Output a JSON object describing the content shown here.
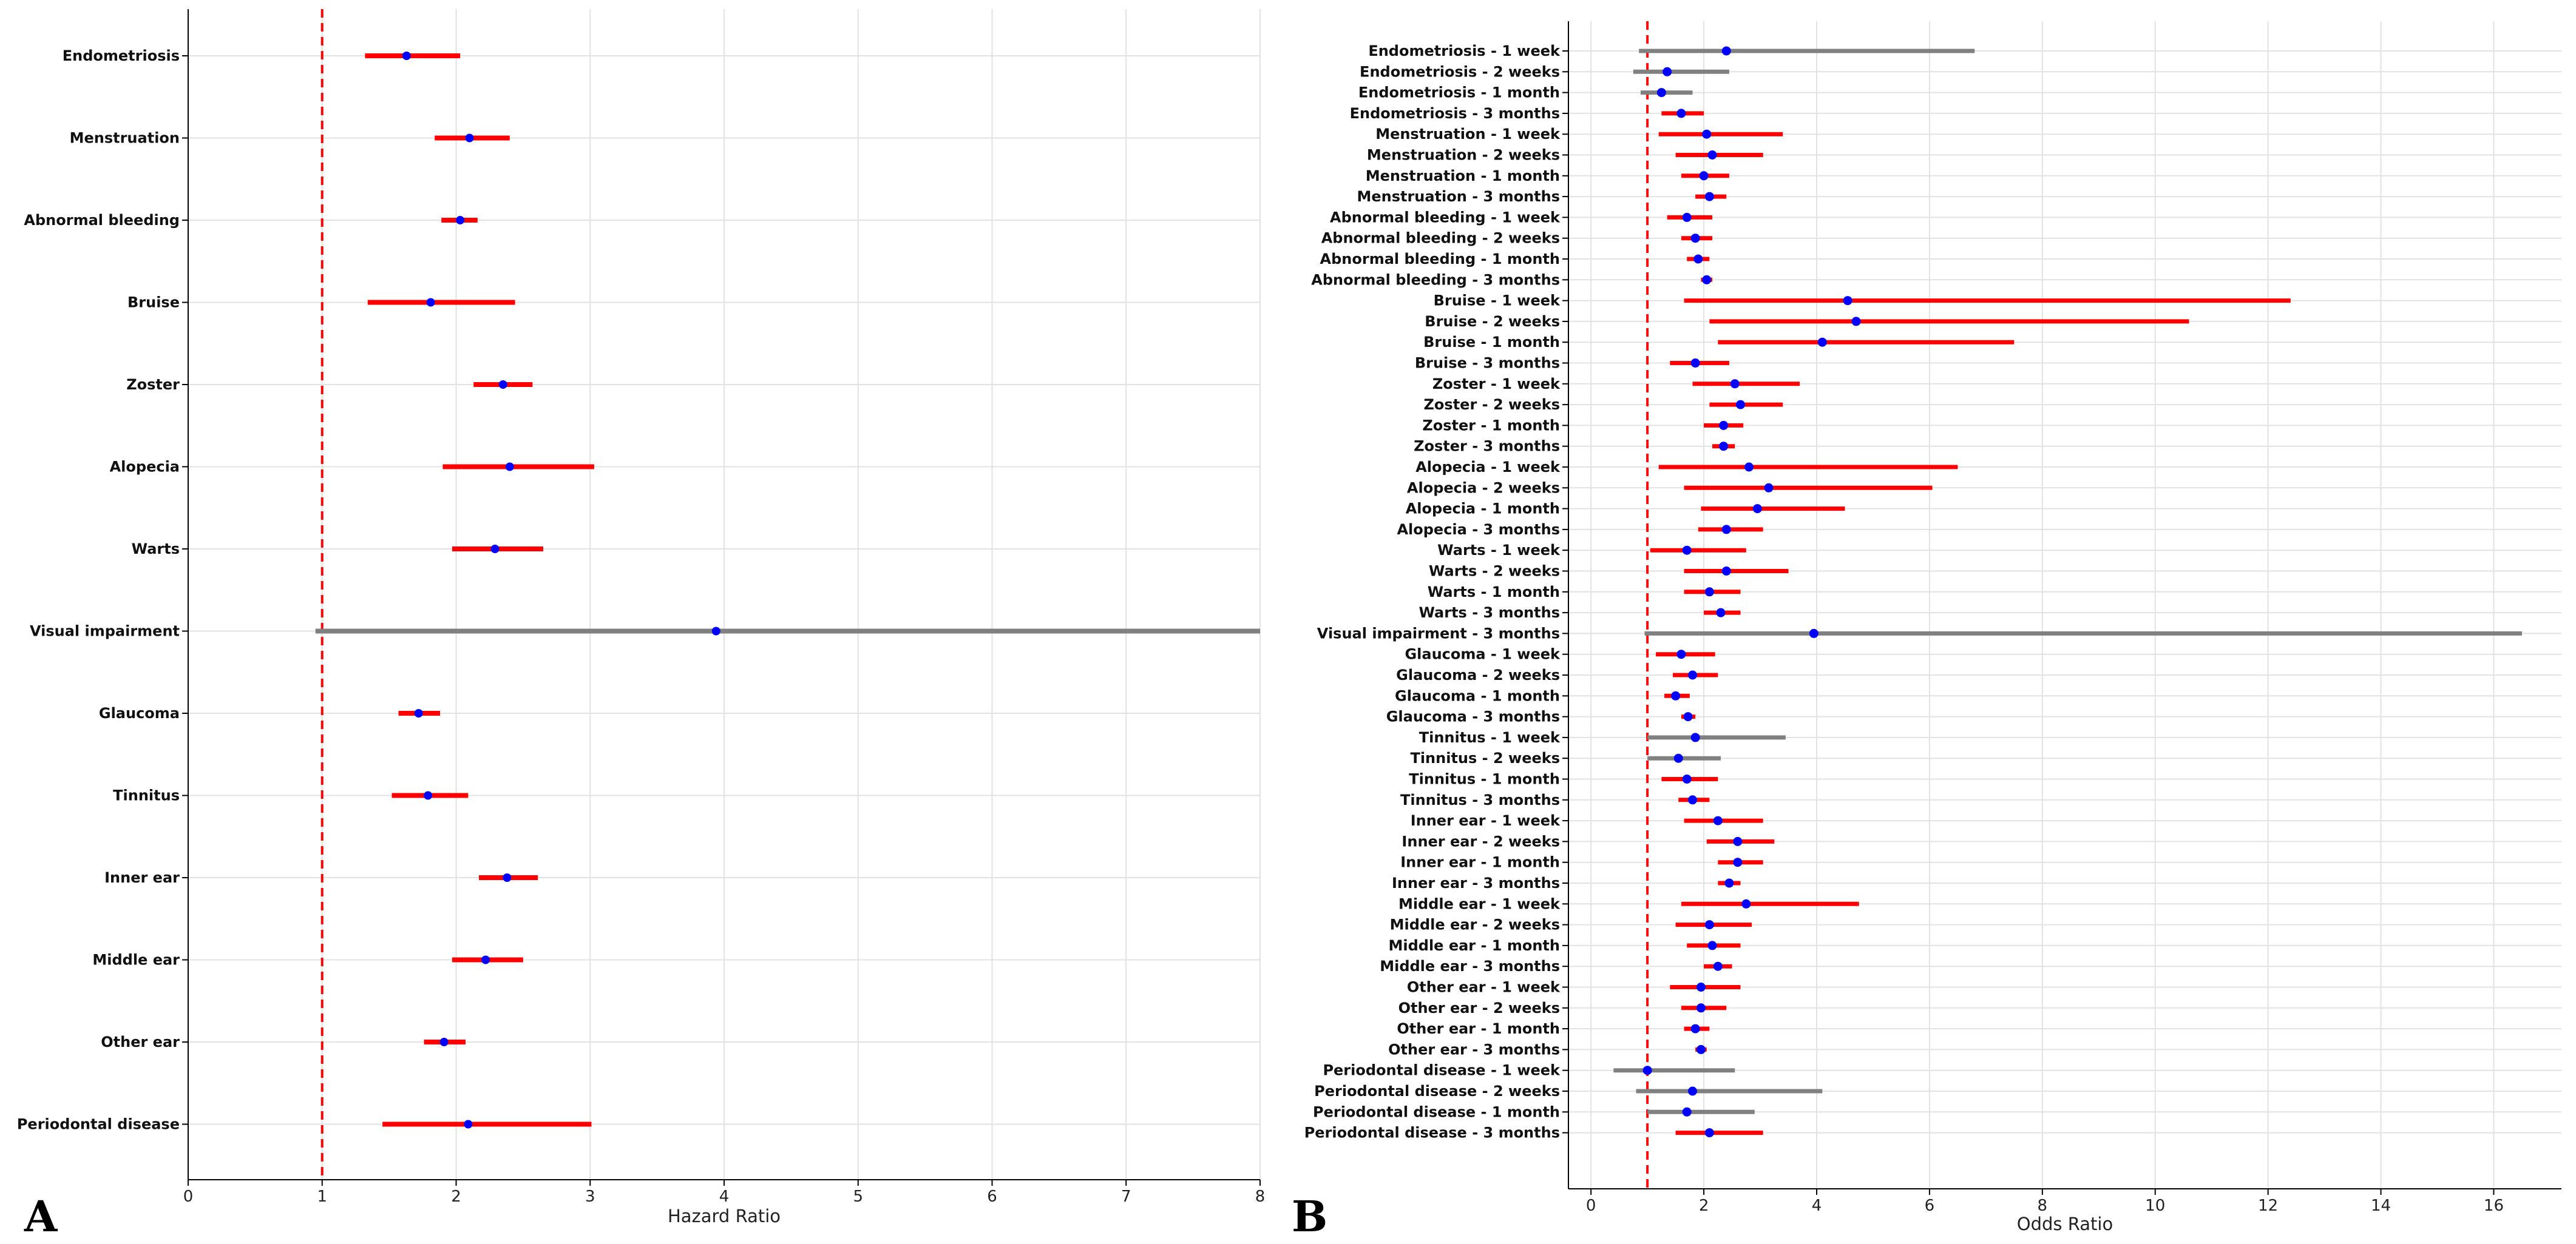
{
  "colors": {
    "significant": "#ff0000",
    "nonsignificant": "#808080",
    "point": "#0000ff",
    "reference": "#ff0000",
    "grid": "#e2e2e2",
    "axis": "#000000"
  },
  "chart_data": [
    {
      "type": "forest",
      "panel_label": "A",
      "title": "",
      "xlabel": "Hazard Ratio",
      "ylabel": "",
      "xlim": [
        0,
        8
      ],
      "xticks": [
        0,
        1,
        2,
        3,
        4,
        5,
        6,
        7,
        8
      ],
      "grid": true,
      "reference_line": 1,
      "rows": [
        {
          "label": "Endometriosis",
          "est": 1.63,
          "lo": 1.32,
          "hi": 2.03,
          "sig": true
        },
        {
          "label": "Menstruation",
          "est": 2.1,
          "lo": 1.84,
          "hi": 2.4,
          "sig": true
        },
        {
          "label": "Abnormal bleeding",
          "est": 2.03,
          "lo": 1.89,
          "hi": 2.16,
          "sig": true
        },
        {
          "label": "Bruise",
          "est": 1.81,
          "lo": 1.34,
          "hi": 2.44,
          "sig": true
        },
        {
          "label": "Zoster",
          "est": 2.35,
          "lo": 2.13,
          "hi": 2.57,
          "sig": true
        },
        {
          "label": "Alopecia",
          "est": 2.4,
          "lo": 1.9,
          "hi": 3.03,
          "sig": true
        },
        {
          "label": "Warts",
          "est": 2.29,
          "lo": 1.97,
          "hi": 2.65,
          "sig": true
        },
        {
          "label": "Visual impairment",
          "est": 3.94,
          "lo": 0.95,
          "hi": 8.0,
          "sig": false
        },
        {
          "label": "Glaucoma",
          "est": 1.72,
          "lo": 1.57,
          "hi": 1.88,
          "sig": true
        },
        {
          "label": "Tinnitus",
          "est": 1.79,
          "lo": 1.52,
          "hi": 2.09,
          "sig": true
        },
        {
          "label": "Inner ear",
          "est": 2.38,
          "lo": 2.17,
          "hi": 2.61,
          "sig": true
        },
        {
          "label": "Middle ear",
          "est": 2.22,
          "lo": 1.97,
          "hi": 2.5,
          "sig": true
        },
        {
          "label": "Other ear",
          "est": 1.91,
          "lo": 1.76,
          "hi": 2.07,
          "sig": true
        },
        {
          "label": "Periodontal disease",
          "est": 2.09,
          "lo": 1.45,
          "hi": 3.01,
          "sig": true
        }
      ]
    },
    {
      "type": "forest",
      "panel_label": "B",
      "title": "",
      "xlabel": "Odds Ratio",
      "ylabel": "",
      "xlim": [
        -0.4,
        17.2
      ],
      "xticks": [
        0,
        2,
        4,
        6,
        8,
        10,
        12,
        14,
        16
      ],
      "grid": true,
      "reference_line": 1,
      "rows": [
        {
          "label": "Endometriosis - 1 week",
          "est": 2.4,
          "lo": 0.85,
          "hi": 6.8,
          "sig": false
        },
        {
          "label": "Endometriosis - 2 weeks",
          "est": 1.35,
          "lo": 0.75,
          "hi": 2.45,
          "sig": false
        },
        {
          "label": "Endometriosis - 1 month",
          "est": 1.25,
          "lo": 0.88,
          "hi": 1.8,
          "sig": false
        },
        {
          "label": "Endometriosis - 3 months",
          "est": 1.6,
          "lo": 1.25,
          "hi": 2.0,
          "sig": true
        },
        {
          "label": "Menstruation - 1 week",
          "est": 2.05,
          "lo": 1.2,
          "hi": 3.4,
          "sig": true
        },
        {
          "label": "Menstruation - 2 weeks",
          "est": 2.15,
          "lo": 1.5,
          "hi": 3.05,
          "sig": true
        },
        {
          "label": "Menstruation - 1 month",
          "est": 2.0,
          "lo": 1.6,
          "hi": 2.45,
          "sig": true
        },
        {
          "label": "Menstruation - 3 months",
          "est": 2.1,
          "lo": 1.85,
          "hi": 2.4,
          "sig": true
        },
        {
          "label": "Abnormal bleeding - 1 week",
          "est": 1.7,
          "lo": 1.35,
          "hi": 2.15,
          "sig": true
        },
        {
          "label": "Abnormal bleeding - 2 weeks",
          "est": 1.85,
          "lo": 1.6,
          "hi": 2.15,
          "sig": true
        },
        {
          "label": "Abnormal bleeding - 1 month",
          "est": 1.9,
          "lo": 1.7,
          "hi": 2.1,
          "sig": true
        },
        {
          "label": "Abnormal bleeding - 3 months",
          "est": 2.05,
          "lo": 1.95,
          "hi": 2.15,
          "sig": true
        },
        {
          "label": "Bruise - 1 week",
          "est": 4.55,
          "lo": 1.65,
          "hi": 12.4,
          "sig": true
        },
        {
          "label": "Bruise - 2 weeks",
          "est": 4.7,
          "lo": 2.1,
          "hi": 10.6,
          "sig": true
        },
        {
          "label": "Bruise - 1 month",
          "est": 4.1,
          "lo": 2.25,
          "hi": 7.5,
          "sig": true
        },
        {
          "label": "Bruise - 3 months",
          "est": 1.85,
          "lo": 1.4,
          "hi": 2.45,
          "sig": true
        },
        {
          "label": "Zoster - 1 week",
          "est": 2.55,
          "lo": 1.8,
          "hi": 3.7,
          "sig": true
        },
        {
          "label": "Zoster - 2 weeks",
          "est": 2.65,
          "lo": 2.1,
          "hi": 3.4,
          "sig": true
        },
        {
          "label": "Zoster - 1 month",
          "est": 2.35,
          "lo": 2.0,
          "hi": 2.7,
          "sig": true
        },
        {
          "label": "Zoster - 3 months",
          "est": 2.35,
          "lo": 2.15,
          "hi": 2.55,
          "sig": true
        },
        {
          "label": "Alopecia - 1 week",
          "est": 2.8,
          "lo": 1.2,
          "hi": 6.5,
          "sig": true
        },
        {
          "label": "Alopecia - 2 weeks",
          "est": 3.15,
          "lo": 1.65,
          "hi": 6.05,
          "sig": true
        },
        {
          "label": "Alopecia - 1 month",
          "est": 2.95,
          "lo": 1.95,
          "hi": 4.5,
          "sig": true
        },
        {
          "label": "Alopecia - 3 months",
          "est": 2.4,
          "lo": 1.9,
          "hi": 3.05,
          "sig": true
        },
        {
          "label": "Warts - 1 week",
          "est": 1.7,
          "lo": 1.05,
          "hi": 2.75,
          "sig": true
        },
        {
          "label": "Warts - 2 weeks",
          "est": 2.4,
          "lo": 1.65,
          "hi": 3.5,
          "sig": true
        },
        {
          "label": "Warts - 1 month",
          "est": 2.1,
          "lo": 1.65,
          "hi": 2.65,
          "sig": true
        },
        {
          "label": "Warts - 3 months",
          "est": 2.3,
          "lo": 2.0,
          "hi": 2.65,
          "sig": true
        },
        {
          "label": "Visual impairment - 3 months",
          "est": 3.95,
          "lo": 0.95,
          "hi": 16.5,
          "sig": false
        },
        {
          "label": "Glaucoma - 1 week",
          "est": 1.6,
          "lo": 1.15,
          "hi": 2.2,
          "sig": true
        },
        {
          "label": "Glaucoma - 2 weeks",
          "est": 1.8,
          "lo": 1.45,
          "hi": 2.25,
          "sig": true
        },
        {
          "label": "Glaucoma - 1 month",
          "est": 1.5,
          "lo": 1.3,
          "hi": 1.75,
          "sig": true
        },
        {
          "label": "Glaucoma - 3 months",
          "est": 1.72,
          "lo": 1.6,
          "hi": 1.85,
          "sig": true
        },
        {
          "label": "Tinnitus - 1 week",
          "est": 1.85,
          "lo": 1.0,
          "hi": 3.45,
          "sig": false
        },
        {
          "label": "Tinnitus - 2 weeks",
          "est": 1.55,
          "lo": 1.0,
          "hi": 2.3,
          "sig": false
        },
        {
          "label": "Tinnitus - 1 month",
          "est": 1.7,
          "lo": 1.25,
          "hi": 2.25,
          "sig": true
        },
        {
          "label": "Tinnitus - 3 months",
          "est": 1.8,
          "lo": 1.55,
          "hi": 2.1,
          "sig": true
        },
        {
          "label": "Inner ear - 1 week",
          "est": 2.25,
          "lo": 1.65,
          "hi": 3.05,
          "sig": true
        },
        {
          "label": "Inner ear - 2 weeks",
          "est": 2.6,
          "lo": 2.05,
          "hi": 3.25,
          "sig": true
        },
        {
          "label": "Inner ear - 1 month",
          "est": 2.6,
          "lo": 2.25,
          "hi": 3.05,
          "sig": true
        },
        {
          "label": "Inner ear - 3 months",
          "est": 2.45,
          "lo": 2.25,
          "hi": 2.65,
          "sig": true
        },
        {
          "label": "Middle ear - 1 week",
          "est": 2.75,
          "lo": 1.6,
          "hi": 4.75,
          "sig": true
        },
        {
          "label": "Middle ear - 2 weeks",
          "est": 2.1,
          "lo": 1.5,
          "hi": 2.85,
          "sig": true
        },
        {
          "label": "Middle ear - 1 month",
          "est": 2.15,
          "lo": 1.7,
          "hi": 2.65,
          "sig": true
        },
        {
          "label": "Middle ear - 3 months",
          "est": 2.25,
          "lo": 2.0,
          "hi": 2.5,
          "sig": true
        },
        {
          "label": "Other ear - 1 week",
          "est": 1.95,
          "lo": 1.4,
          "hi": 2.65,
          "sig": true
        },
        {
          "label": "Other ear - 2 weeks",
          "est": 1.95,
          "lo": 1.6,
          "hi": 2.4,
          "sig": true
        },
        {
          "label": "Other ear - 1 month",
          "est": 1.85,
          "lo": 1.65,
          "hi": 2.1,
          "sig": true
        },
        {
          "label": "Other ear - 3 months",
          "est": 1.95,
          "lo": 1.85,
          "hi": 2.05,
          "sig": true
        },
        {
          "label": "Periodontal disease - 1 week",
          "est": 1.0,
          "lo": 0.4,
          "hi": 2.55,
          "sig": false
        },
        {
          "label": "Periodontal disease - 2 weeks",
          "est": 1.8,
          "lo": 0.8,
          "hi": 4.1,
          "sig": false
        },
        {
          "label": "Periodontal disease - 1 month",
          "est": 1.7,
          "lo": 1.0,
          "hi": 2.9,
          "sig": false
        },
        {
          "label": "Periodontal disease - 3 months",
          "est": 2.1,
          "lo": 1.5,
          "hi": 3.05,
          "sig": true
        }
      ]
    }
  ]
}
